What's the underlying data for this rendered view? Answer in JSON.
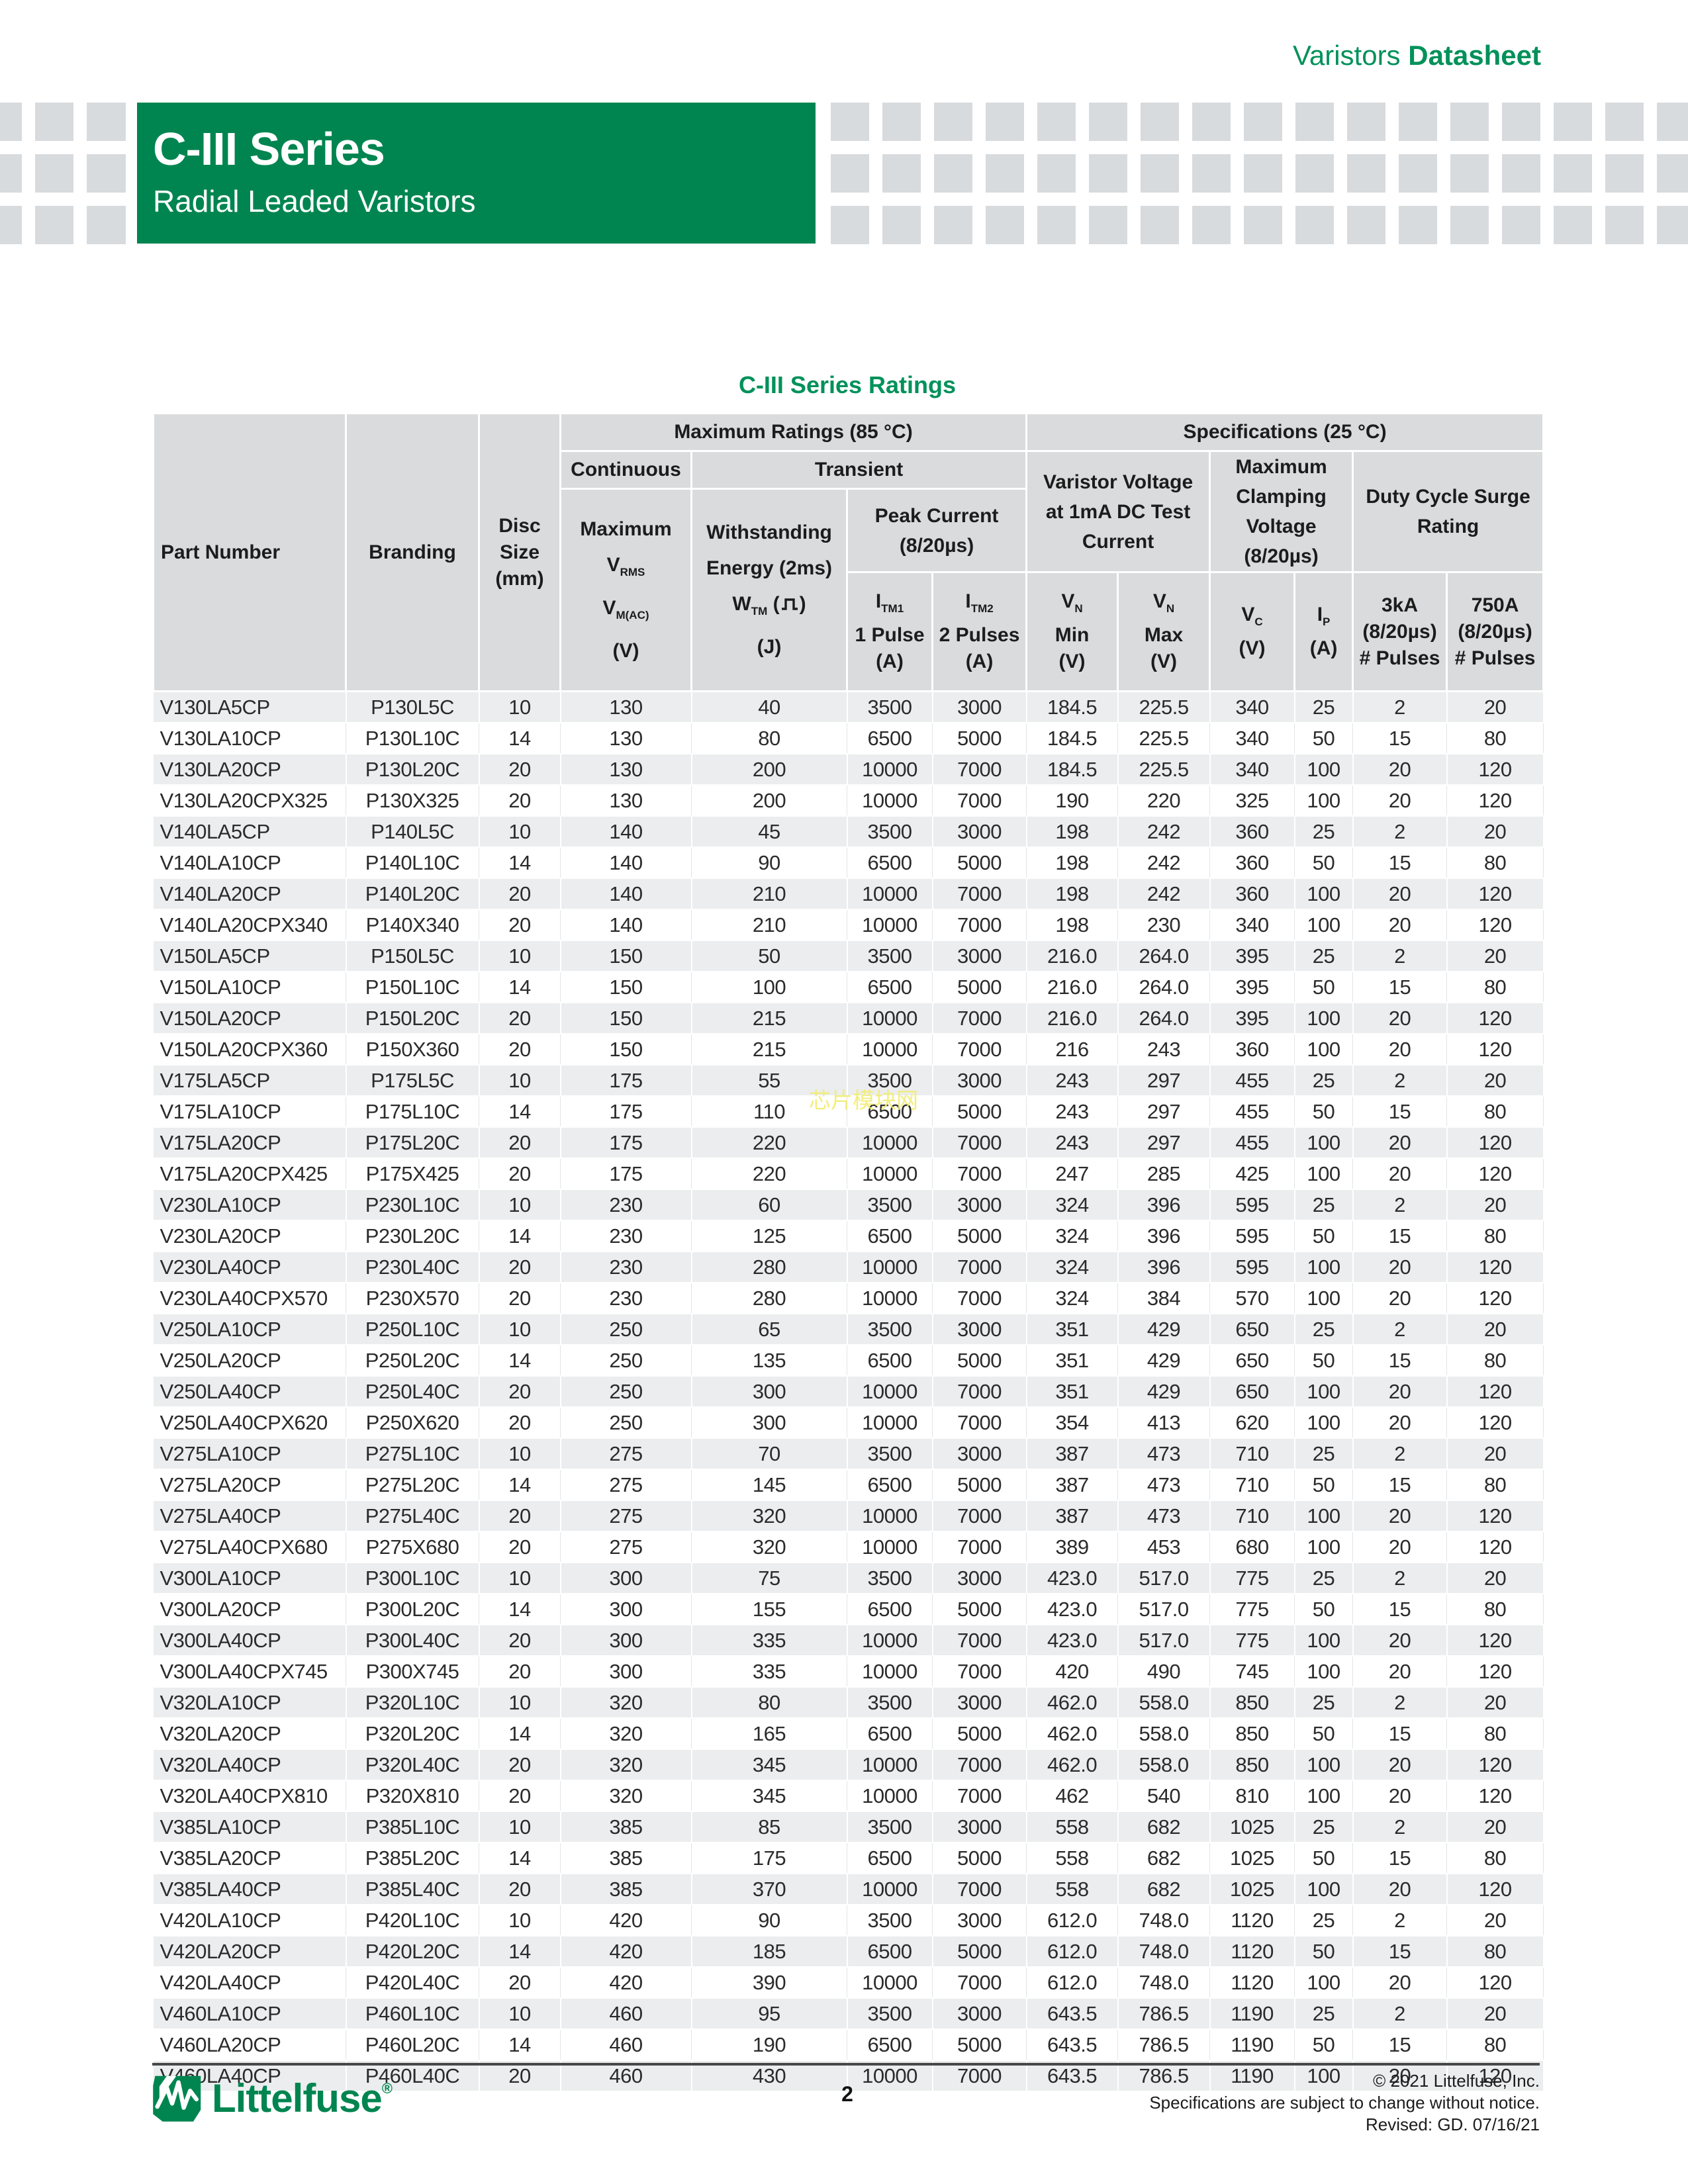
{
  "masthead": {
    "doc_family": "Varistors",
    "doc_type": "Datasheet"
  },
  "banner": {
    "title": "C-III Series",
    "subtitle": "Radial Leaded Varistors"
  },
  "colors": {
    "brand_green": "#008550",
    "accent_green": "#00915a",
    "header_cell_gray": "#d9dbdc",
    "row_alt_gray": "#ebedee",
    "checker_gray": "#d8dbde",
    "watermark_yellow": "#f2ed71"
  },
  "table": {
    "title": "C-III Series Ratings",
    "hdr": {
      "part_number": "Part Number",
      "branding": "Branding",
      "disc1": "Disc",
      "disc2": "Size",
      "disc3": "(mm)",
      "max_ratings": "Maximum Ratings (85 °C)",
      "specs": "Specifications (25 °C)",
      "continuous": "Continuous",
      "transient": "Transient",
      "vrms1": "Maximum",
      "vrms_sym": "V",
      "vrms_sub": "RMS",
      "vrms_sym2": "V",
      "vrms_sub2": "M(AC)",
      "vrms_unit": "(V)",
      "wtm1": "Withstanding",
      "wtm2": "Energy (2ms)",
      "wtm_sym": "W",
      "wtm_sub": "TM",
      "wtm_open": " (",
      "wtm_close": ")",
      "wtm_unit": "(J)",
      "peak1": "Peak Current",
      "peak2": "(8/20µs)",
      "vv1": "Varistor Voltage",
      "vv2": "at 1mA DC Test",
      "vv3": "Current",
      "cl1": "Maximum",
      "cl2": "Clamping",
      "cl3": "Voltage",
      "cl4": "(8/20µs)",
      "duty1": "Duty Cycle Surge",
      "duty2": "Rating",
      "itm1_sym": "I",
      "itm1_sub": "TM1",
      "itm1_l2": "1 Pulse",
      "itm1_unit": "(A)",
      "itm2_sym": "I",
      "itm2_sub": "TM2",
      "itm2_l2": "2 Pulses",
      "itm2_unit": "(A)",
      "vn_sym": "V",
      "vn_sub": "N",
      "vn_min": "Min",
      "vn_max": "Max",
      "vn_unit": "(V)",
      "vc_sym": "V",
      "vc_sub": "C",
      "vc_unit": "(V)",
      "ip_sym": "I",
      "ip_sub": "P",
      "ip_unit": "(A)",
      "k3_1": "3kA",
      "k3_2": "(8/20µs)",
      "k3_3": "# Pulses",
      "a750_1": "750A",
      "a750_2": "(8/20µs)",
      "a750_3": "# Pulses"
    },
    "rows": [
      [
        "V130LA5CP",
        "P130L5C",
        "10",
        "130",
        "40",
        "3500",
        "3000",
        "184.5",
        "225.5",
        "340",
        "25",
        "2",
        "20"
      ],
      [
        "V130LA10CP",
        "P130L10C",
        "14",
        "130",
        "80",
        "6500",
        "5000",
        "184.5",
        "225.5",
        "340",
        "50",
        "15",
        "80"
      ],
      [
        "V130LA20CP",
        "P130L20C",
        "20",
        "130",
        "200",
        "10000",
        "7000",
        "184.5",
        "225.5",
        "340",
        "100",
        "20",
        "120"
      ],
      [
        "V130LA20CPX325",
        "P130X325",
        "20",
        "130",
        "200",
        "10000",
        "7000",
        "190",
        "220",
        "325",
        "100",
        "20",
        "120"
      ],
      [
        "V140LA5CP",
        "P140L5C",
        "10",
        "140",
        "45",
        "3500",
        "3000",
        "198",
        "242",
        "360",
        "25",
        "2",
        "20"
      ],
      [
        "V140LA10CP",
        "P140L10C",
        "14",
        "140",
        "90",
        "6500",
        "5000",
        "198",
        "242",
        "360",
        "50",
        "15",
        "80"
      ],
      [
        "V140LA20CP",
        "P140L20C",
        "20",
        "140",
        "210",
        "10000",
        "7000",
        "198",
        "242",
        "360",
        "100",
        "20",
        "120"
      ],
      [
        "V140LA20CPX340",
        "P140X340",
        "20",
        "140",
        "210",
        "10000",
        "7000",
        "198",
        "230",
        "340",
        "100",
        "20",
        "120"
      ],
      [
        "V150LA5CP",
        "P150L5C",
        "10",
        "150",
        "50",
        "3500",
        "3000",
        "216.0",
        "264.0",
        "395",
        "25",
        "2",
        "20"
      ],
      [
        "V150LA10CP",
        "P150L10C",
        "14",
        "150",
        "100",
        "6500",
        "5000",
        "216.0",
        "264.0",
        "395",
        "50",
        "15",
        "80"
      ],
      [
        "V150LA20CP",
        "P150L20C",
        "20",
        "150",
        "215",
        "10000",
        "7000",
        "216.0",
        "264.0",
        "395",
        "100",
        "20",
        "120"
      ],
      [
        "V150LA20CPX360",
        "P150X360",
        "20",
        "150",
        "215",
        "10000",
        "7000",
        "216",
        "243",
        "360",
        "100",
        "20",
        "120"
      ],
      [
        "V175LA5CP",
        "P175L5C",
        "10",
        "175",
        "55",
        "3500",
        "3000",
        "243",
        "297",
        "455",
        "25",
        "2",
        "20"
      ],
      [
        "V175LA10CP",
        "P175L10C",
        "14",
        "175",
        "110",
        "6500",
        "5000",
        "243",
        "297",
        "455",
        "50",
        "15",
        "80"
      ],
      [
        "V175LA20CP",
        "P175L20C",
        "20",
        "175",
        "220",
        "10000",
        "7000",
        "243",
        "297",
        "455",
        "100",
        "20",
        "120"
      ],
      [
        "V175LA20CPX425",
        "P175X425",
        "20",
        "175",
        "220",
        "10000",
        "7000",
        "247",
        "285",
        "425",
        "100",
        "20",
        "120"
      ],
      [
        "V230LA10CP",
        "P230L10C",
        "10",
        "230",
        "60",
        "3500",
        "3000",
        "324",
        "396",
        "595",
        "25",
        "2",
        "20"
      ],
      [
        "V230LA20CP",
        "P230L20C",
        "14",
        "230",
        "125",
        "6500",
        "5000",
        "324",
        "396",
        "595",
        "50",
        "15",
        "80"
      ],
      [
        "V230LA40CP",
        "P230L40C",
        "20",
        "230",
        "280",
        "10000",
        "7000",
        "324",
        "396",
        "595",
        "100",
        "20",
        "120"
      ],
      [
        "V230LA40CPX570",
        "P230X570",
        "20",
        "230",
        "280",
        "10000",
        "7000",
        "324",
        "384",
        "570",
        "100",
        "20",
        "120"
      ],
      [
        "V250LA10CP",
        "P250L10C",
        "10",
        "250",
        "65",
        "3500",
        "3000",
        "351",
        "429",
        "650",
        "25",
        "2",
        "20"
      ],
      [
        "V250LA20CP",
        "P250L20C",
        "14",
        "250",
        "135",
        "6500",
        "5000",
        "351",
        "429",
        "650",
        "50",
        "15",
        "80"
      ],
      [
        "V250LA40CP",
        "P250L40C",
        "20",
        "250",
        "300",
        "10000",
        "7000",
        "351",
        "429",
        "650",
        "100",
        "20",
        "120"
      ],
      [
        "V250LA40CPX620",
        "P250X620",
        "20",
        "250",
        "300",
        "10000",
        "7000",
        "354",
        "413",
        "620",
        "100",
        "20",
        "120"
      ],
      [
        "V275LA10CP",
        "P275L10C",
        "10",
        "275",
        "70",
        "3500",
        "3000",
        "387",
        "473",
        "710",
        "25",
        "2",
        "20"
      ],
      [
        "V275LA20CP",
        "P275L20C",
        "14",
        "275",
        "145",
        "6500",
        "5000",
        "387",
        "473",
        "710",
        "50",
        "15",
        "80"
      ],
      [
        "V275LA40CP",
        "P275L40C",
        "20",
        "275",
        "320",
        "10000",
        "7000",
        "387",
        "473",
        "710",
        "100",
        "20",
        "120"
      ],
      [
        "V275LA40CPX680",
        "P275X680",
        "20",
        "275",
        "320",
        "10000",
        "7000",
        "389",
        "453",
        "680",
        "100",
        "20",
        "120"
      ],
      [
        "V300LA10CP",
        "P300L10C",
        "10",
        "300",
        "75",
        "3500",
        "3000",
        "423.0",
        "517.0",
        "775",
        "25",
        "2",
        "20"
      ],
      [
        "V300LA20CP",
        "P300L20C",
        "14",
        "300",
        "155",
        "6500",
        "5000",
        "423.0",
        "517.0",
        "775",
        "50",
        "15",
        "80"
      ],
      [
        "V300LA40CP",
        "P300L40C",
        "20",
        "300",
        "335",
        "10000",
        "7000",
        "423.0",
        "517.0",
        "775",
        "100",
        "20",
        "120"
      ],
      [
        "V300LA40CPX745",
        "P300X745",
        "20",
        "300",
        "335",
        "10000",
        "7000",
        "420",
        "490",
        "745",
        "100",
        "20",
        "120"
      ],
      [
        "V320LA10CP",
        "P320L10C",
        "10",
        "320",
        "80",
        "3500",
        "3000",
        "462.0",
        "558.0",
        "850",
        "25",
        "2",
        "20"
      ],
      [
        "V320LA20CP",
        "P320L20C",
        "14",
        "320",
        "165",
        "6500",
        "5000",
        "462.0",
        "558.0",
        "850",
        "50",
        "15",
        "80"
      ],
      [
        "V320LA40CP",
        "P320L40C",
        "20",
        "320",
        "345",
        "10000",
        "7000",
        "462.0",
        "558.0",
        "850",
        "100",
        "20",
        "120"
      ],
      [
        "V320LA40CPX810",
        "P320X810",
        "20",
        "320",
        "345",
        "10000",
        "7000",
        "462",
        "540",
        "810",
        "100",
        "20",
        "120"
      ],
      [
        "V385LA10CP",
        "P385L10C",
        "10",
        "385",
        "85",
        "3500",
        "3000",
        "558",
        "682",
        "1025",
        "25",
        "2",
        "20"
      ],
      [
        "V385LA20CP",
        "P385L20C",
        "14",
        "385",
        "175",
        "6500",
        "5000",
        "558",
        "682",
        "1025",
        "50",
        "15",
        "80"
      ],
      [
        "V385LA40CP",
        "P385L40C",
        "20",
        "385",
        "370",
        "10000",
        "7000",
        "558",
        "682",
        "1025",
        "100",
        "20",
        "120"
      ],
      [
        "V420LA10CP",
        "P420L10C",
        "10",
        "420",
        "90",
        "3500",
        "3000",
        "612.0",
        "748.0",
        "1120",
        "25",
        "2",
        "20"
      ],
      [
        "V420LA20CP",
        "P420L20C",
        "14",
        "420",
        "185",
        "6500",
        "5000",
        "612.0",
        "748.0",
        "1120",
        "50",
        "15",
        "80"
      ],
      [
        "V420LA40CP",
        "P420L40C",
        "20",
        "420",
        "390",
        "10000",
        "7000",
        "612.0",
        "748.0",
        "1120",
        "100",
        "20",
        "120"
      ],
      [
        "V460LA10CP",
        "P460L10C",
        "10",
        "460",
        "95",
        "3500",
        "3000",
        "643.5",
        "786.5",
        "1190",
        "25",
        "2",
        "20"
      ],
      [
        "V460LA20CP",
        "P460L20C",
        "14",
        "460",
        "190",
        "6500",
        "5000",
        "643.5",
        "786.5",
        "1190",
        "50",
        "15",
        "80"
      ],
      [
        "V460LA40CP",
        "P460L40C",
        "20",
        "460",
        "430",
        "10000",
        "7000",
        "643.5",
        "786.5",
        "1190",
        "100",
        "20",
        "120"
      ]
    ]
  },
  "watermark": {
    "text": "芯片模块网"
  },
  "footer": {
    "logo_text": "Littelfuse",
    "reg": "®",
    "page_number": "2",
    "copyright": "© 2021 Littelfuse, Inc.",
    "notice": "Specifications are subject to change without notice.",
    "revised": "Revised: GD. 07/16/21"
  }
}
